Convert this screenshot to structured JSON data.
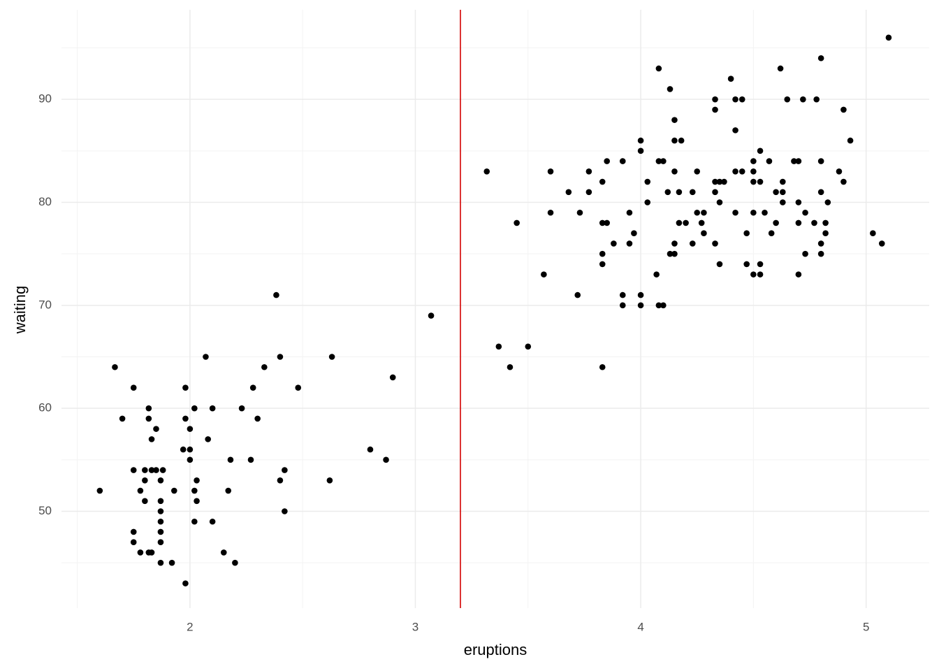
{
  "chart_data": {
    "type": "scatter",
    "x_label": "eruptions",
    "y_label": "waiting",
    "color": "#000000",
    "xlim": [
      1.43,
      5.28
    ],
    "ylim": [
      40.6,
      98.7
    ],
    "xticks": [
      2,
      3,
      4,
      5
    ],
    "yticks": [
      50,
      60,
      70,
      80,
      90
    ],
    "x_minor_grid": [
      1.5,
      2.5,
      3.5,
      4.5
    ],
    "y_minor_grid": [
      45,
      55,
      65,
      75,
      85,
      95
    ],
    "grid": true,
    "vline": {
      "x": 3.2,
      "color": "#d40000"
    },
    "x": [
      5.1,
      4.8,
      4.08,
      4.62,
      4.4,
      4.13,
      4.33,
      4.42,
      4.45,
      4.65,
      4.72,
      4.78,
      4.33,
      4.9,
      4.15,
      4.42,
      4.0,
      4.15,
      4.18,
      4.93,
      4.0,
      4.53,
      3.85,
      3.92,
      4.08,
      4.1,
      4.5,
      4.57,
      4.68,
      4.7,
      4.8,
      3.317,
      3.6,
      3.77,
      4.15,
      4.25,
      4.42,
      4.45,
      4.5,
      4.88,
      3.83,
      4.03,
      4.33,
      4.35,
      4.37,
      4.5,
      4.53,
      4.63,
      4.9,
      3.68,
      3.77,
      4.12,
      4.17,
      4.23,
      4.33,
      4.6,
      4.63,
      4.8,
      4.03,
      4.35,
      4.63,
      4.7,
      4.83,
      3.6,
      3.73,
      3.95,
      4.25,
      4.28,
      4.42,
      4.5,
      4.55,
      4.73,
      3.45,
      3.83,
      3.85,
      4.17,
      4.2,
      4.27,
      4.6,
      4.7,
      4.77,
      4.82,
      3.97,
      4.28,
      4.47,
      4.58,
      4.82,
      5.03,
      3.88,
      3.95,
      4.15,
      4.23,
      4.33,
      4.8,
      5.07,
      3.83,
      4.13,
      4.15,
      4.73,
      4.8,
      3.83,
      4.35,
      4.47,
      4.53,
      3.57,
      4.07,
      4.5,
      4.53,
      4.7,
      3.72,
      3.92,
      4.0,
      2.383,
      3.92,
      4.0,
      4.08,
      4.1,
      3.07,
      3.37,
      3.5,
      2.07,
      2.4,
      2.63,
      1.667,
      2.33,
      3.42,
      3.83,
      2.9,
      1.75,
      1.98,
      2.28,
      2.48,
      1.817,
      2.02,
      2.1,
      2.23,
      1.7,
      1.817,
      1.98,
      2.3,
      1.85,
      2.0,
      1.83,
      2.08,
      1.97,
      2.0,
      2.8,
      2.0,
      2.18,
      2.27,
      2.87,
      1.75,
      1.8,
      1.83,
      1.85,
      1.88,
      2.42,
      1.8,
      1.87,
      2.03,
      2.4,
      2.62,
      1.6,
      1.78,
      1.93,
      2.02,
      2.17,
      1.8,
      1.87,
      2.03,
      1.87,
      2.42,
      1.87,
      2.02,
      2.1,
      1.75,
      1.87,
      1.75,
      1.87,
      1.78,
      1.817,
      1.83,
      2.15,
      1.87,
      1.92,
      2.2,
      1.98
    ],
    "y": [
      96,
      94,
      93,
      93,
      92,
      91,
      90,
      90,
      90,
      90,
      90,
      90,
      89,
      89,
      88,
      87,
      86,
      86,
      86,
      86,
      85,
      85,
      84,
      84,
      84,
      84,
      84,
      84,
      84,
      84,
      84,
      83,
      83,
      83,
      83,
      83,
      83,
      83,
      83,
      83,
      82,
      82,
      82,
      82,
      82,
      82,
      82,
      82,
      82,
      81,
      81,
      81,
      81,
      81,
      81,
      81,
      81,
      81,
      80,
      80,
      80,
      80,
      80,
      79,
      79,
      79,
      79,
      79,
      79,
      79,
      79,
      79,
      78,
      78,
      78,
      78,
      78,
      78,
      78,
      78,
      78,
      78,
      77,
      77,
      77,
      77,
      77,
      77,
      76,
      76,
      76,
      76,
      76,
      76,
      76,
      75,
      75,
      75,
      75,
      75,
      74,
      74,
      74,
      74,
      73,
      73,
      73,
      73,
      73,
      71,
      71,
      71,
      71,
      70,
      70,
      70,
      70,
      69,
      66,
      66,
      65,
      65,
      65,
      64,
      64,
      64,
      64,
      63,
      62,
      62,
      62,
      62,
      60,
      60,
      60,
      60,
      59,
      59,
      59,
      59,
      58,
      58,
      57,
      57,
      56,
      56,
      56,
      55,
      55,
      55,
      55,
      54,
      54,
      54,
      54,
      54,
      54,
      53,
      53,
      53,
      53,
      53,
      52,
      52,
      52,
      52,
      52,
      51,
      51,
      51,
      50,
      50,
      49,
      49,
      49,
      48,
      48,
      47,
      47,
      46,
      46,
      46,
      46,
      45,
      45,
      45,
      43
    ]
  }
}
